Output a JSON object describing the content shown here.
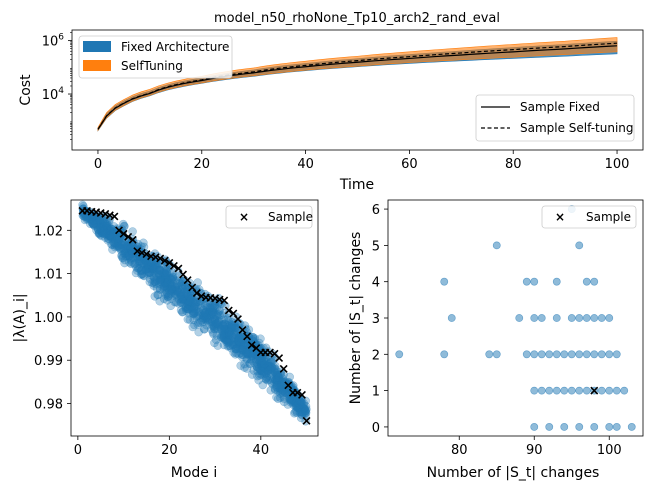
{
  "chart_data": [
    {
      "type": "area",
      "title": "model_n50_rhoNone_Tp10_arch2_rand_eval",
      "xlabel": "Time",
      "ylabel": "Cost",
      "y_scale": "log",
      "xlim": [
        -5,
        105
      ],
      "ylim": [
        80,
        2500000
      ],
      "x_ticks": [
        0,
        20,
        40,
        60,
        80,
        100
      ],
      "y_ticks": [
        {
          "value": 10000,
          "label": "10^4"
        },
        {
          "value": 1000000,
          "label": "10^6"
        }
      ],
      "grid": false,
      "series": [
        {
          "name": "Fixed Architecture",
          "kind": "band",
          "color": "#1f77b4",
          "x": [
            0,
            2,
            5,
            10,
            20,
            30,
            40,
            50,
            60,
            70,
            80,
            90,
            100
          ],
          "lower": [
            420,
            1400,
            3600,
            8500,
            25000,
            46000,
            75000,
            105000,
            140000,
            175000,
            215000,
            260000,
            320000
          ],
          "upper": [
            520,
            2100,
            5500,
            13000,
            40000,
            80000,
            140000,
            210000,
            300000,
            410000,
            550000,
            720000,
            950000
          ]
        },
        {
          "name": "SelfTuning",
          "kind": "band",
          "color": "#ff7f0e",
          "x": [
            0,
            2,
            5,
            10,
            20,
            30,
            40,
            50,
            60,
            70,
            80,
            90,
            100
          ],
          "lower": [
            430,
            1450,
            3700,
            8800,
            26000,
            48000,
            78000,
            110000,
            150000,
            190000,
            240000,
            300000,
            380000
          ],
          "upper": [
            560,
            2300,
            6200,
            15000,
            46000,
            95000,
            170000,
            260000,
            380000,
            530000,
            720000,
            950000,
            1300000
          ]
        },
        {
          "name": "Sample Fixed",
          "kind": "line",
          "style": "solid",
          "x": [
            0,
            2,
            5,
            10,
            20,
            30,
            40,
            50,
            60,
            70,
            80,
            90,
            100
          ],
          "y": [
            470,
            1700,
            4500,
            10500,
            32000,
            62000,
            105000,
            155000,
            215000,
            290000,
            380000,
            490000,
            640000
          ]
        },
        {
          "name": "Sample Self-tuning",
          "kind": "line",
          "style": "dashed",
          "x": [
            0,
            2,
            5,
            10,
            20,
            30,
            40,
            50,
            60,
            70,
            80,
            90,
            100
          ],
          "y": [
            480,
            1750,
            4600,
            10800,
            34000,
            68000,
            118000,
            178000,
            250000,
            345000,
            460000,
            600000,
            800000
          ]
        }
      ],
      "legend": [
        {
          "placement": "top-left",
          "entries": [
            "Fixed Architecture",
            "SelfTuning"
          ]
        },
        {
          "placement": "bottom-right",
          "entries": [
            "Sample Fixed",
            "Sample Self-tuning"
          ]
        }
      ]
    },
    {
      "type": "scatter",
      "xlabel": "Mode i",
      "ylabel": "|λ(A)_i|",
      "xlim": [
        -1.5,
        52.5
      ],
      "ylim": [
        0.9725,
        1.027
      ],
      "x_ticks": [
        0,
        20,
        40
      ],
      "y_ticks": [
        0.98,
        0.99,
        1.0,
        1.01,
        1.02
      ],
      "y_tick_labels": [
        "0.98",
        "0.99",
        "1.00",
        "1.01",
        "1.02"
      ],
      "grid": false,
      "legend": {
        "placement": "top-right",
        "entries": [
          "Sample"
        ]
      },
      "series": [
        {
          "name": "",
          "kind": "cloud",
          "color": "#1f77b4",
          "x": [
            1,
            10,
            20,
            30,
            40,
            50
          ],
          "center": [
            1.0245,
            1.0165,
            1.007,
            0.9995,
            0.99,
            0.978
          ],
          "spread": [
            0.001,
            0.0035,
            0.0042,
            0.004,
            0.0038,
            0.002
          ]
        },
        {
          "name": "Sample",
          "kind": "markers",
          "marker": "x",
          "x": [
            1,
            2,
            3,
            4,
            5,
            6,
            7,
            8,
            9,
            10,
            11,
            12,
            13,
            14,
            15,
            16,
            17,
            18,
            19,
            20,
            21,
            22,
            23,
            24,
            25,
            26,
            27,
            28,
            29,
            30,
            31,
            32,
            33,
            34,
            35,
            36,
            37,
            38,
            39,
            40,
            41,
            42,
            43,
            44,
            45,
            46,
            47,
            48,
            49,
            50
          ],
          "y": [
            1.0245,
            1.0245,
            1.0243,
            1.0242,
            1.024,
            1.0238,
            1.0235,
            1.0232,
            1.02,
            1.0192,
            1.0185,
            1.0178,
            1.0152,
            1.0148,
            1.0145,
            1.014,
            1.0138,
            1.0135,
            1.013,
            1.0125,
            1.0118,
            1.0112,
            1.0098,
            1.0085,
            1.0068,
            1.0055,
            1.0048,
            1.0045,
            1.0044,
            1.0043,
            1.004,
            1.0038,
            1.0015,
            1.0008,
            0.9995,
            0.997,
            0.9955,
            0.9935,
            0.9928,
            0.9918,
            0.9918,
            0.9918,
            0.9915,
            0.9905,
            0.988,
            0.9842,
            0.9825,
            0.9825,
            0.982,
            0.976
          ]
        }
      ]
    },
    {
      "type": "scatter",
      "xlabel": "Number of |S_t| changes",
      "ylabel": "Number of |S_t| changes",
      "xlim": [
        70.5,
        104.5
      ],
      "ylim": [
        -0.25,
        6.25
      ],
      "x_ticks": [
        80,
        90,
        100
      ],
      "y_ticks": [
        0,
        1,
        2,
        3,
        4,
        5,
        6
      ],
      "grid": false,
      "legend": {
        "placement": "top-right",
        "entries": [
          "Sample"
        ]
      },
      "series": [
        {
          "name": "",
          "kind": "points",
          "color": "#1f77b4",
          "points": [
            [
              72,
              2
            ],
            [
              78,
              2
            ],
            [
              78,
              4
            ],
            [
              79,
              3
            ],
            [
              84,
              2
            ],
            [
              85,
              2
            ],
            [
              85,
              5
            ],
            [
              88,
              3
            ],
            [
              89,
              2
            ],
            [
              89,
              4
            ],
            [
              90,
              0
            ],
            [
              90,
              1
            ],
            [
              90,
              2
            ],
            [
              90,
              3
            ],
            [
              90,
              4
            ],
            [
              91,
              1
            ],
            [
              91,
              2
            ],
            [
              91,
              3
            ],
            [
              92,
              0
            ],
            [
              92,
              1
            ],
            [
              92,
              2
            ],
            [
              93,
              1
            ],
            [
              93,
              2
            ],
            [
              93,
              3
            ],
            [
              93,
              4
            ],
            [
              94,
              0
            ],
            [
              94,
              1
            ],
            [
              94,
              2
            ],
            [
              95,
              1
            ],
            [
              95,
              2
            ],
            [
              95,
              3
            ],
            [
              95,
              6
            ],
            [
              96,
              0
            ],
            [
              96,
              1
            ],
            [
              96,
              2
            ],
            [
              96,
              3
            ],
            [
              96,
              5
            ],
            [
              97,
              1
            ],
            [
              97,
              2
            ],
            [
              97,
              3
            ],
            [
              97,
              4
            ],
            [
              98,
              0
            ],
            [
              98,
              1
            ],
            [
              98,
              2
            ],
            [
              98,
              3
            ],
            [
              98,
              4
            ],
            [
              99,
              1
            ],
            [
              99,
              2
            ],
            [
              99,
              3
            ],
            [
              100,
              0
            ],
            [
              100,
              1
            ],
            [
              100,
              2
            ],
            [
              100,
              3
            ],
            [
              101,
              0
            ],
            [
              101,
              1
            ],
            [
              101,
              2
            ],
            [
              102,
              1
            ],
            [
              103,
              0
            ]
          ]
        },
        {
          "name": "Sample",
          "kind": "markers",
          "marker": "x",
          "points": [
            [
              98,
              1
            ]
          ]
        }
      ]
    }
  ]
}
